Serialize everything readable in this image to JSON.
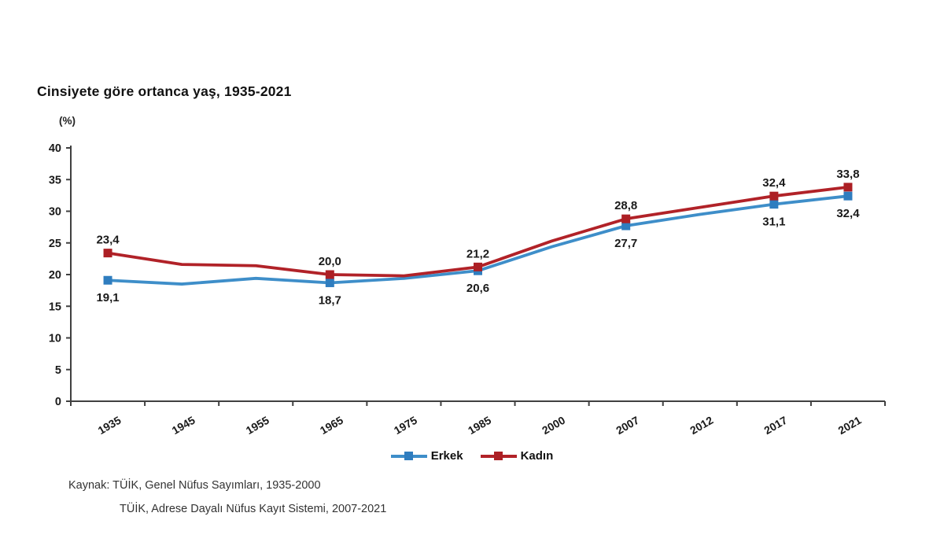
{
  "title": "Cinsiyete göre ortanca yaş, 1935-2021",
  "y_unit_label": "(%)",
  "source_lines": [
    "Kaynak: TÜİK, Genel Nüfus Sayımları, 1935-2000",
    "TÜİK, Adrese Dayalı Nüfus Kayıt Sistemi, 2007-2021"
  ],
  "chart_data": {
    "type": "line",
    "title": "Cinsiyete göre ortanca yaş, 1935-2021",
    "ylabel": "(%)",
    "xlabel": "",
    "categories": [
      "1935",
      "1945",
      "1955",
      "1965",
      "1975",
      "1985",
      "2000",
      "2007",
      "2012",
      "2017",
      "2021"
    ],
    "series": [
      {
        "name": "Erkek",
        "color": "#3E8EC9",
        "marker_color": "#2F7DBF",
        "values": [
          19.1,
          18.5,
          19.4,
          18.7,
          19.4,
          20.6,
          24.4,
          27.7,
          29.5,
          31.1,
          32.4
        ],
        "labeled": [
          true,
          false,
          false,
          true,
          false,
          true,
          false,
          true,
          false,
          true,
          true
        ],
        "shown_labels": [
          "19,1",
          "18,7",
          "20,6",
          "27,7",
          "31,1",
          "32,4"
        ]
      },
      {
        "name": "Kadın",
        "color": "#B12228",
        "marker_color": "#AC1F24",
        "values": [
          23.4,
          21.6,
          21.4,
          20.0,
          19.8,
          21.2,
          25.3,
          28.8,
          30.6,
          32.4,
          33.8
        ],
        "labeled": [
          true,
          false,
          false,
          true,
          false,
          true,
          false,
          true,
          false,
          true,
          true
        ],
        "shown_labels": [
          "23,4",
          "20,0",
          "21,2",
          "28,8",
          "32,4",
          "33,8"
        ]
      }
    ],
    "ylim": [
      0,
      40
    ],
    "ytick_step": 5,
    "ytick_labels": [
      "0",
      "5",
      "10",
      "15",
      "20",
      "25",
      "30",
      "35",
      "40"
    ],
    "decimal_separator": ",",
    "grid": false,
    "legend_position": "bottom",
    "marker_shape": "square",
    "axis_color": "#404040",
    "label_color": "#1a1a1a",
    "background_color": "#ffffff"
  }
}
